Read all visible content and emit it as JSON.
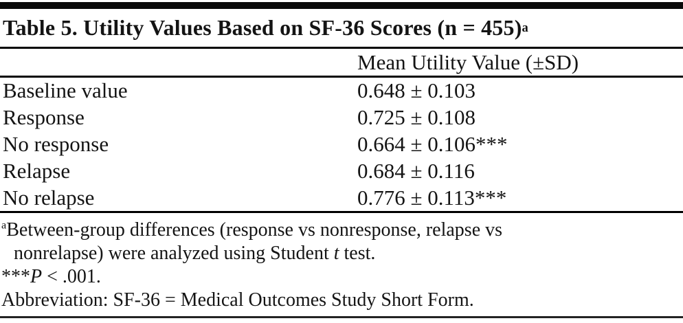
{
  "table": {
    "title": {
      "text": "Table 5. Utility Values Based on SF-36 Scores (n = 455)",
      "superscript": "a"
    },
    "columns": {
      "value_header": "Mean Utility Value (±SD)"
    },
    "rows": [
      {
        "label": "Baseline value",
        "value": "0.648 ± 0.103",
        "significance": ""
      },
      {
        "label": "Response",
        "value": "0.725 ± 0.108",
        "significance": ""
      },
      {
        "label": "No response",
        "value": "0.664 ± 0.106",
        "significance": "***"
      },
      {
        "label": "Relapse",
        "value": "0.684 ± 0.116",
        "significance": ""
      },
      {
        "label": "No relapse",
        "value": "0.776 ± 0.113",
        "significance": "***"
      }
    ],
    "footnotes": {
      "a": {
        "marker": "a",
        "line1": "Between-group differences (response vs nonresponse, relapse vs",
        "line2_prefix": "nonrelapse) were analyzed using Student ",
        "line2_italic": "t",
        "line2_suffix": " test."
      },
      "significance": {
        "stars": "***",
        "symbol": "P",
        "rest": " < .001."
      },
      "abbreviation": "Abbreviation: SF-36 = Medical Outcomes Study Short Form."
    }
  },
  "colors": {
    "background": "#ffffff",
    "text": "#141414",
    "rule": "#000000"
  }
}
